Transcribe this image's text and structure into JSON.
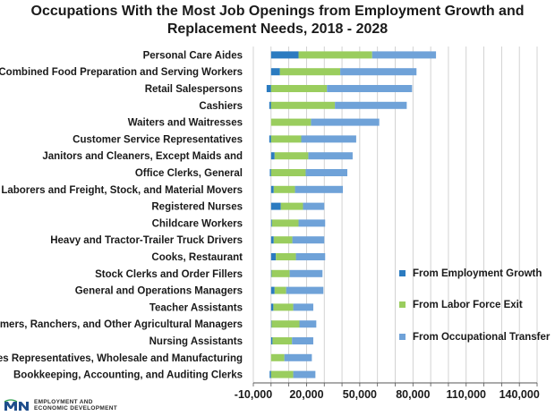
{
  "title": {
    "line1": "Occupations With the Most Job Openings from Employment Growth and",
    "line2": "Replacement Needs, 2018 - 2028"
  },
  "colors": {
    "growth": "#2b7bc0",
    "exit": "#9acd5e",
    "transfer": "#6fa2d8",
    "grid": "#c8c8c8"
  },
  "footer": {
    "logo_text": "EMPLOYMENT AND ECONOMIC DEVELOPMENT",
    "logo_line1": "EMPLOYMENT AND",
    "logo_line2": "ECONOMIC DEVELOPMENT"
  },
  "chart_data": {
    "type": "bar",
    "orientation": "horizontal",
    "stacked": true,
    "title": "Occupations With the Most Job Openings from Employment Growth and Replacement Needs, 2018 - 2028",
    "categories": [
      "Personal Care Aides",
      "Combined Food Preparation and Serving Workers",
      "Retail Salespersons",
      "Cashiers",
      "Waiters and Waitresses",
      "Customer Service Representatives",
      "Janitors and Cleaners, Except Maids and",
      "Office Clerks, General",
      "Laborers and Freight, Stock, and Material Movers",
      "Registered Nurses",
      "Childcare Workers",
      "Heavy and Tractor-Trailer Truck Drivers",
      "Cooks, Restaurant",
      "Stock Clerks and Order Fillers",
      "General and Operations Managers",
      "Teacher Assistants",
      "Farmers, Ranchers, and Other Agricultural Managers",
      "Nursing Assistants",
      "Sales Representatives, Wholesale and Manufacturing",
      "Bookkeeping, Accounting, and Auditing Clerks"
    ],
    "series": [
      {
        "name": "From Employment Growth",
        "values": [
          15500,
          5000,
          -2500,
          -1000,
          0,
          -1000,
          2000,
          -700,
          1500,
          5500,
          500,
          1500,
          2700,
          300,
          2000,
          1300,
          300,
          800,
          0,
          -800
        ]
      },
      {
        "name": "From Labor Force Exit",
        "values": [
          41500,
          34000,
          31500,
          36000,
          22500,
          17000,
          19000,
          19500,
          12000,
          12500,
          15000,
          10500,
          11300,
          10200,
          6500,
          11200,
          15700,
          11000,
          7500,
          12500
        ]
      },
      {
        "name": "From Occupational Transfer",
        "values": [
          36000,
          43000,
          48000,
          40500,
          38500,
          31000,
          25000,
          23500,
          27000,
          12000,
          15000,
          18000,
          16500,
          18500,
          21000,
          11300,
          9500,
          12000,
          15500,
          12500
        ]
      }
    ],
    "xlim": [
      -10000,
      150000
    ],
    "xticks": [
      "-10,000",
      "20,000",
      "50,000",
      "80,000",
      "110,000",
      "140,000"
    ],
    "xtick_values": [
      -10000,
      20000,
      50000,
      80000,
      110000,
      140000
    ],
    "minor_tick_step": 10000,
    "grid": "vertical",
    "legend_position": "right"
  }
}
